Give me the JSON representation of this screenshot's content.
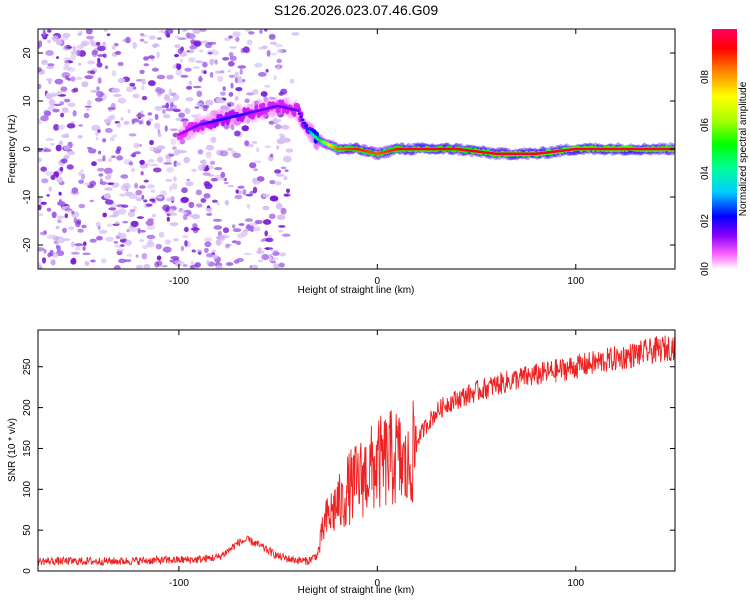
{
  "title": "S126.2026.023.07.46.G09",
  "colors": {
    "line": "#ee2222",
    "cmap": [
      "#ffffff",
      "#ff33ff",
      "#8800ff",
      "#0000ff",
      "#00ccff",
      "#00ff88",
      "#00ff00",
      "#aaff00",
      "#ffff00",
      "#ff8800",
      "#ff0000",
      "#ff0066"
    ],
    "scatter": "#8a2be2"
  },
  "chart_data": [
    {
      "type": "heatmap",
      "title": "S126.2026.023.07.46.G09",
      "xlabel": "Height of straight line (km)",
      "ylabel": "Frequency (Hz)",
      "xlim": [
        -171,
        150
      ],
      "ylim": [
        -25,
        25
      ],
      "xticks": [
        -100,
        0,
        100
      ],
      "xtick_labels": [
        "-100",
        "0",
        "100"
      ],
      "yticks": [
        -20,
        -10,
        0,
        10,
        20
      ],
      "ytick_labels": [
        "-20",
        "-10",
        "0",
        "10",
        "20"
      ],
      "grid": false,
      "ridge": {
        "x": [
          -100,
          -90,
          -80,
          -70,
          -60,
          -50,
          -40,
          -35,
          -30,
          -25,
          -20,
          -10,
          0,
          10,
          20,
          40,
          60,
          80,
          100,
          120,
          150
        ],
        "frequency": [
          3,
          5,
          6,
          7,
          8,
          9,
          8,
          4,
          2,
          1,
          0,
          0,
          -1,
          0,
          0,
          0,
          -1,
          -1,
          0,
          0,
          0
        ],
        "amplitude": [
          0.15,
          0.2,
          0.25,
          0.25,
          0.2,
          0.2,
          0.2,
          0.3,
          0.5,
          0.7,
          0.85,
          0.9,
          0.85,
          0.9,
          0.95,
          0.9,
          0.95,
          0.95,
          0.95,
          0.95,
          0.95
        ]
      },
      "colorbar": {
        "label": "Normalized spectral amplitude",
        "range": [
          0,
          1
        ],
        "ticks": [
          0.0,
          0.2,
          0.4,
          0.6,
          0.8
        ],
        "tick_labels": [
          "0.0",
          "0.2",
          "0.4",
          "0.6",
          "0.8"
        ]
      }
    },
    {
      "type": "line",
      "xlabel": "Height of straight line (km)",
      "ylabel": "SNR (10 * v/v)",
      "xlim": [
        -171,
        150
      ],
      "ylim": [
        0,
        295
      ],
      "xticks": [
        -100,
        0,
        100
      ],
      "xtick_labels": [
        "-100",
        "0",
        "100"
      ],
      "yticks": [
        0,
        50,
        100,
        150,
        200,
        250
      ],
      "ytick_labels": [
        "0",
        "50",
        "100",
        "150",
        "200",
        "250"
      ],
      "grid": false,
      "series": [
        {
          "x": [
            -171,
            -150,
            -130,
            -110,
            -90,
            -80,
            -75,
            -70,
            -65,
            -60,
            -55,
            -50,
            -45,
            -40,
            -35,
            -30,
            -27,
            -25,
            -22,
            -20,
            -18,
            -15,
            -10,
            -5,
            0,
            5,
            10,
            15,
            20,
            25,
            30,
            35,
            40,
            45,
            50,
            60,
            70,
            80,
            90,
            100,
            110,
            120,
            130,
            140,
            150
          ],
          "y": [
            12,
            12,
            12,
            13,
            14,
            17,
            25,
            35,
            38,
            32,
            25,
            18,
            15,
            13,
            12,
            20,
            55,
            65,
            75,
            85,
            80,
            100,
            110,
            120,
            130,
            135,
            140,
            120,
            160,
            180,
            195,
            205,
            210,
            215,
            220,
            228,
            235,
            240,
            245,
            250,
            255,
            260,
            265,
            270,
            275
          ]
        }
      ]
    }
  ]
}
